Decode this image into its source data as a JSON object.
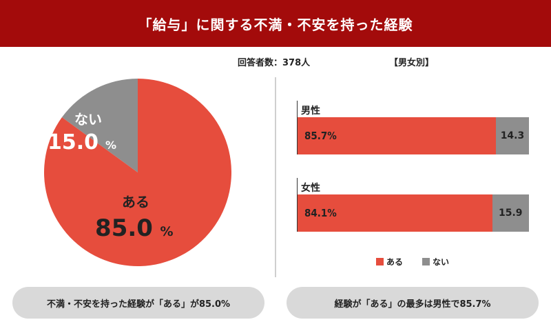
{
  "title": "「給与」に関する不満・不安を持った経験",
  "respondents": "回答者数：378人",
  "gender_heading": "【男女別】",
  "colors": {
    "header": "#a30b0b",
    "aru": "#e64d3d",
    "nai": "#8e8e8e"
  },
  "pie_labels": {
    "nai_label": "ない",
    "nai_value": "15.0",
    "nai_unit": "%",
    "aru_label": "ある",
    "aru_value": "85.0",
    "aru_unit": "%"
  },
  "bars": [
    {
      "title": "男性",
      "aru_label": "85.7%",
      "nai_label": "14.3"
    },
    {
      "title": "女性",
      "aru_label": "84.1%",
      "nai_label": "15.9"
    }
  ],
  "legend": {
    "aru": "ある",
    "nai": "ない"
  },
  "summary_left": "不満・不安を持った経験が「ある」が85.0%",
  "summary_right": "経験が「ある」の最多は男性で85.7%",
  "chart_data": [
    {
      "type": "pie",
      "categories": [
        "ある",
        "ない"
      ],
      "values": [
        85.0,
        15.0
      ]
    },
    {
      "type": "bar",
      "orientation": "horizontal",
      "stacked": true,
      "categories": [
        "男性",
        "女性"
      ],
      "series": [
        {
          "name": "ある",
          "values": [
            85.7,
            84.1
          ]
        },
        {
          "name": "ない",
          "values": [
            14.3,
            15.9
          ]
        }
      ]
    }
  ]
}
